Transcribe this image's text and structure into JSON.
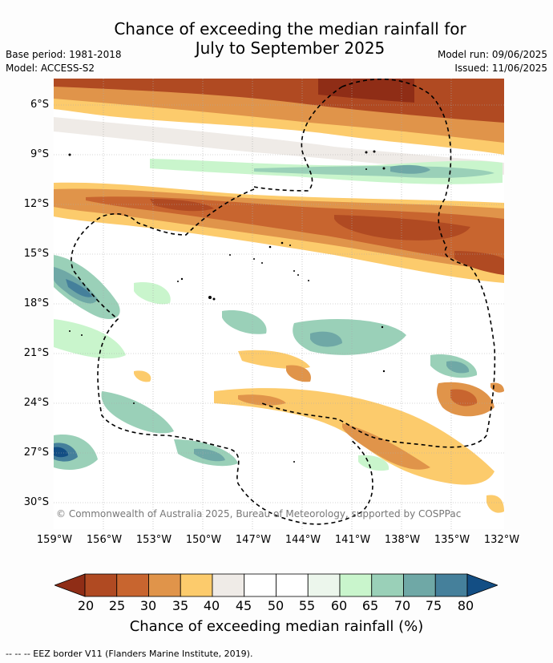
{
  "title_line1": "Chance of exceeding the median rainfall for",
  "title_line2": "July to September 2025",
  "meta": {
    "base_period": "Base period: 1981-2018",
    "model": "Model: ACCESS-S2",
    "model_run": "Model run: 09/06/2025",
    "issued": "Issued: 11/06/2025"
  },
  "y_ticks": [
    "6°S",
    "9°S",
    "12°S",
    "15°S",
    "18°S",
    "21°S",
    "24°S",
    "27°S",
    "30°S"
  ],
  "x_ticks": [
    "159°W",
    "156°W",
    "153°W",
    "150°W",
    "147°W",
    "144°W",
    "141°W",
    "138°W",
    "135°W",
    "132°W"
  ],
  "copyright": "© Commonwealth of Australia 2025, Bureau of Meteorology, supported by COSPPac",
  "colorbar": {
    "labels": [
      "20",
      "25",
      "30",
      "35",
      "40",
      "45",
      "50",
      "55",
      "60",
      "65",
      "70",
      "75",
      "80"
    ],
    "colors": [
      "#8f2d16",
      "#b04a22",
      "#c8652f",
      "#e0944a",
      "#fccb6c",
      "#efebe7",
      "#ffffff",
      "#ffffff",
      "#ecf6ec",
      "#c9f5cc",
      "#9ad0b8",
      "#6fa8a6",
      "#45809b",
      "#134e84"
    ],
    "title": "Chance of exceeding median rainfall (%)"
  },
  "footer": "--  --  -- EEZ border V11 (Flanders Marine Institute, 2019)."
}
